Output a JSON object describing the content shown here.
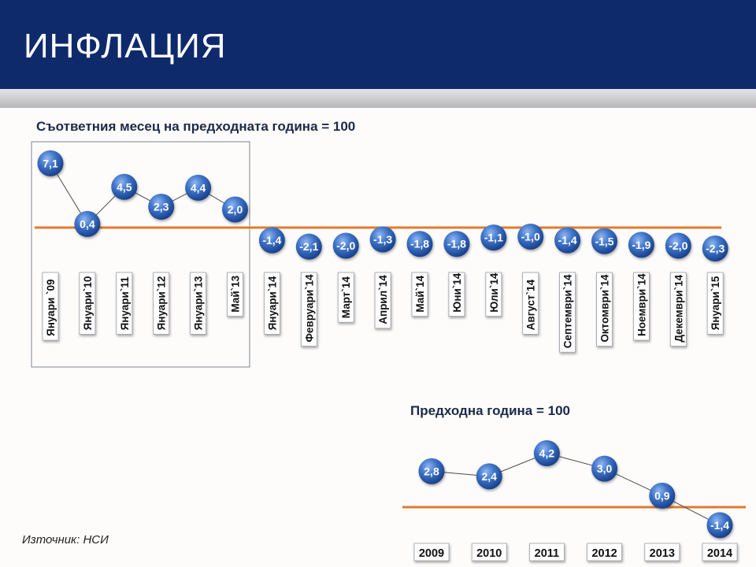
{
  "header": {
    "title": "ИНФЛАЦИЯ"
  },
  "source": "Източник: НСИ",
  "colors": {
    "header": "#0e2a6b",
    "bubble": "#2e63b8",
    "baseline": "#e07b2e"
  },
  "chart_data": [
    {
      "type": "line",
      "title": "Съответния месец на предходната година = 100",
      "categories": [
        "Януари `09",
        "Януари`10",
        "Януари`11",
        "Януари`12",
        "Януари`13",
        "Май`13",
        "Януари`14",
        "Февруари`14",
        "Март`14",
        "Април`14",
        "Май`14",
        "Юни`14",
        "Юли`14",
        "Август`14",
        "Септември`14",
        "Октомври`14",
        "Ноември`14",
        "Декември`14",
        "Януари`15"
      ],
      "values": [
        7.1,
        0.4,
        4.5,
        2.3,
        4.4,
        2.0,
        -1.4,
        -2.1,
        -2.0,
        -1.3,
        -1.8,
        -1.8,
        -1.1,
        -1.0,
        -1.4,
        -1.5,
        -1.9,
        -2.0,
        -2.3
      ],
      "labels": [
        "7,1",
        "0,4",
        "4,5",
        "2,3",
        "4,4",
        "2,0",
        "-1,4",
        "-2,1",
        "-2,0",
        "-1,3",
        "-1,8",
        "-1,8",
        "-1,1",
        "-1,0",
        "-1,4",
        "-1,5",
        "-1,9",
        "-2,0",
        "-2,3"
      ],
      "connected_points": 6,
      "baseline": 0
    },
    {
      "type": "line",
      "title": "Предходна година = 100",
      "categories": [
        "2009",
        "2010",
        "2011",
        "2012",
        "2013",
        "2014"
      ],
      "values": [
        2.8,
        2.4,
        4.2,
        3.0,
        0.9,
        -1.4
      ],
      "labels": [
        "2,8",
        "2,4",
        "4,2",
        "3,0",
        "0,9",
        "-1,4"
      ],
      "baseline": 0
    }
  ]
}
